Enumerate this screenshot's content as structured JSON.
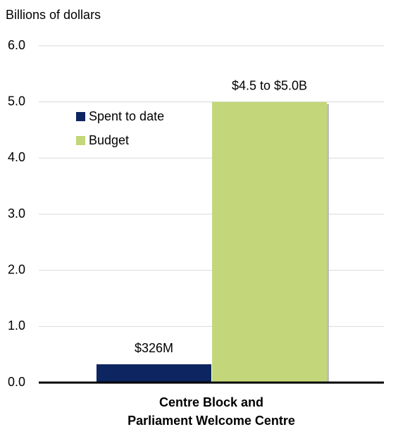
{
  "chart_data": {
    "type": "bar",
    "y_label": "Billions of dollars",
    "categories": [
      "Centre Block and\nParliament Welcome Centre"
    ],
    "series": [
      {
        "name": "Spent to date",
        "color": "#0d2560",
        "values": [
          0.326
        ],
        "value_labels": [
          "$326M"
        ]
      },
      {
        "name": "Budget",
        "color": "#c3d77a",
        "values": [
          5.0
        ],
        "value_labels": [
          "$4.5 to $5.0B"
        ]
      }
    ],
    "ylim": [
      0,
      6
    ],
    "yticks": [
      {
        "value": 0,
        "label": "0.0"
      },
      {
        "value": 1,
        "label": "1.0"
      },
      {
        "value": 2,
        "label": "2.0"
      },
      {
        "value": 3,
        "label": "3.0"
      },
      {
        "value": 4,
        "label": "4.0"
      },
      {
        "value": 5,
        "label": "5.0"
      },
      {
        "value": 6,
        "label": "6.0"
      }
    ],
    "grid": true,
    "legend": "upper left"
  }
}
